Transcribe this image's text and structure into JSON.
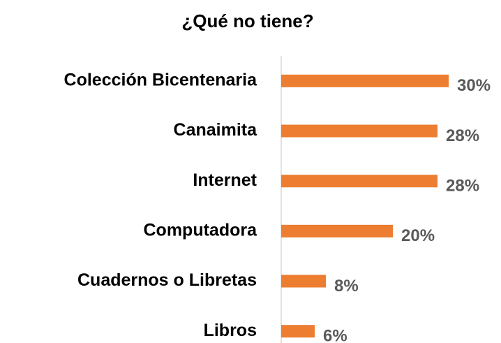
{
  "chart_data": {
    "type": "bar",
    "orientation": "horizontal",
    "title": "¿Qué no tiene?",
    "categories": [
      "Colección Bicentenaria",
      "Canaimita",
      "Internet",
      "Computadora",
      "Cuadernos o Libretas",
      "Libros"
    ],
    "values": [
      30,
      28,
      28,
      20,
      8,
      6
    ],
    "value_labels": [
      "30%",
      "28%",
      "28%",
      "20%",
      "8%",
      "6%"
    ],
    "color": "#ed7d31"
  }
}
